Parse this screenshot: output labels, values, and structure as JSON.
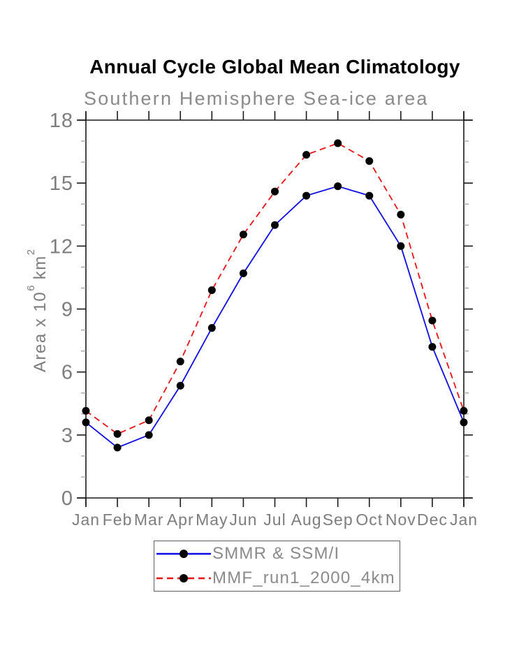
{
  "chart_data": {
    "type": "line",
    "title": "Annual Cycle Global Mean Climatology",
    "subtitle": "Southern Hemisphere Sea-ice area",
    "ylabel": "Area x 10^6 km^2",
    "ylabel_parts": {
      "base": "Area x 10",
      "exp": "6",
      "unit": " km",
      "unit_exp": "2"
    },
    "categories": [
      "Jan",
      "Feb",
      "Mar",
      "Apr",
      "May",
      "Jun",
      "Jul",
      "Aug",
      "Sep",
      "Oct",
      "Nov",
      "Dec",
      "Jan"
    ],
    "ylim": [
      0,
      18
    ],
    "yticks": [
      0,
      3,
      6,
      9,
      12,
      15,
      18
    ],
    "minor_tick_interval": 1,
    "grid": false,
    "legend_position": "bottom-center",
    "series": [
      {
        "name": "SMMR & SSM/I",
        "color": "#0a0ae6",
        "line_style": "solid",
        "marker": "circle",
        "marker_color": "#000000",
        "values": [
          3.6,
          2.4,
          3.0,
          5.35,
          8.1,
          10.7,
          13.0,
          14.4,
          14.85,
          14.4,
          12.0,
          7.2,
          3.6
        ]
      },
      {
        "name": "MMF_run1_2000_4km",
        "color": "#ee1111",
        "line_style": "dashed",
        "marker": "circle",
        "marker_color": "#000000",
        "values": [
          4.15,
          3.05,
          3.7,
          6.5,
          9.9,
          12.55,
          14.6,
          16.35,
          16.9,
          16.05,
          13.5,
          8.45,
          4.15
        ]
      }
    ],
    "colors": {
      "axis": "#1a1a1a",
      "minor_tick": "#9a9a9a",
      "tick_label": "#7d7d7d",
      "title": "#000000",
      "subtitle": "#8a8a8a",
      "legend_text": "#8a8a8a",
      "legend_border": "#5f5f5f"
    }
  }
}
